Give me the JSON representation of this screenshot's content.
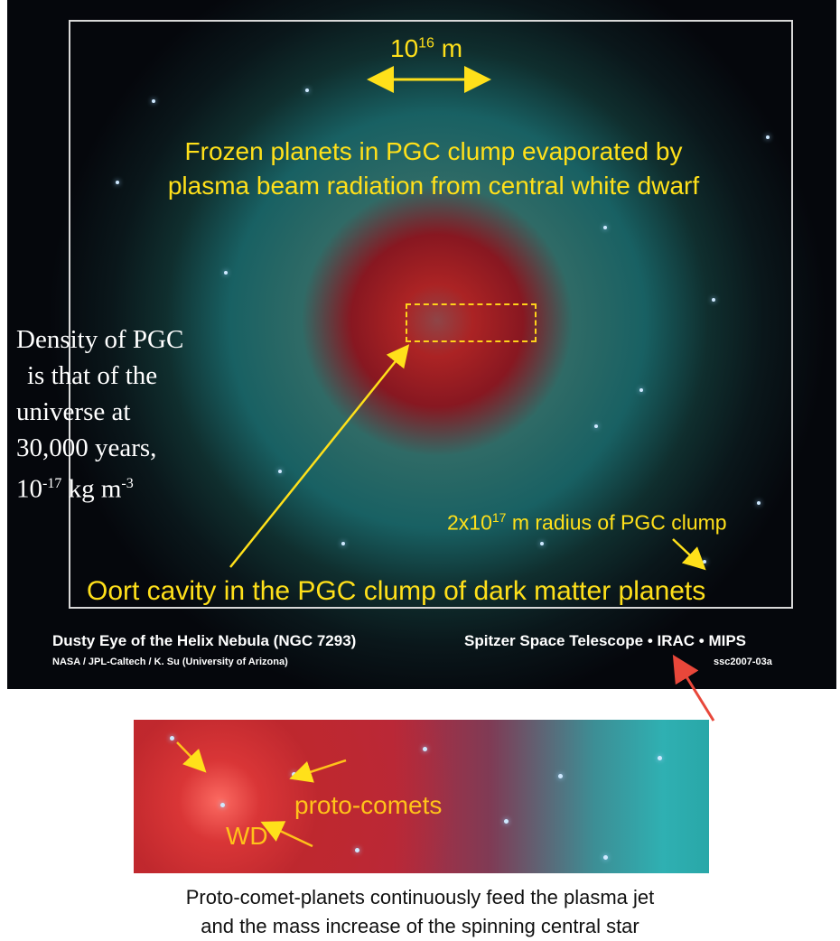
{
  "image": {
    "scale_label_base": "10",
    "scale_label_exp": "16",
    "scale_label_unit": " m",
    "headline_line1": "Frozen planets in PGC clump evaporated by",
    "headline_line2": "plasma beam radiation from central white dwarf",
    "density_line1": "Density of PGC",
    "density_line2": "is that of the",
    "density_line3": "universe at",
    "density_line4": "30,000 years,",
    "density_value_base": "10",
    "density_value_exp": "-17",
    "density_value_unit": "kg m",
    "density_value_unit_exp": "-3",
    "radius_base": "2x10",
    "radius_exp": "17",
    "radius_text": " m radius of PGC clump",
    "oort_label": "Oort cavity in the PGC clump of dark matter planets",
    "caption_title": "Dusty Eye of the Helix Nebula (NGC 7293)",
    "caption_credit": "NASA / JPL-Caltech / K. Su (University of Arizona)",
    "caption_instrument": "Spitzer Space Telescope • IRAC • MIPS",
    "caption_id": "ssc2007-03a"
  },
  "inset": {
    "proto_label": "proto-comets",
    "wd_label": "WD"
  },
  "bottom_caption": {
    "line1": "Proto-comet-planets continuously feed the plasma jet",
    "line2": "and the mass increase of the spinning central star"
  },
  "colors": {
    "label_yellow": "#ffe01a",
    "arrow_red": "#e8473a",
    "nebula_red": "#c8282f",
    "nebula_cyan": "#2fb0b2"
  }
}
